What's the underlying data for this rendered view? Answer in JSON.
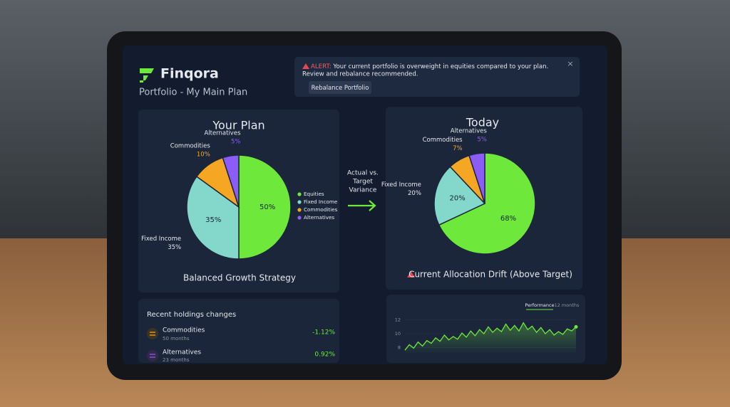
{
  "header": {
    "app_name": "Finqora",
    "subtitle": "Portfolio - My Main Plan"
  },
  "alert": {
    "label": "ALERT:",
    "message": [
      "Your current portfolio is overweight in equities compared to your plan.",
      "Review and rebalance recommended."
    ],
    "button": "Rebalance Portfolio"
  },
  "plan_chart": {
    "type": "pie",
    "title": "Your Plan",
    "caption": "Balanced Growth Strategy",
    "categories": [
      "Equities",
      "Fixed Income",
      "Commodities",
      "Alternatives"
    ],
    "values": [
      50,
      35,
      10,
      5
    ],
    "value_labels": [
      "50%",
      "35%",
      "10%",
      "5%"
    ],
    "colors": [
      "#6ee83a",
      "#84d8cb",
      "#f5a623",
      "#8b5cf6"
    ],
    "legend": true
  },
  "variance_label": [
    "Actual vs.",
    "Target",
    "Variance"
  ],
  "today_chart": {
    "type": "pie",
    "title": "Today",
    "caption": "Current Allocation Drift (Above Target)",
    "categories": [
      "Equities",
      "Fixed Income",
      "Commodities",
      "Alternatives"
    ],
    "values": [
      68,
      20,
      7,
      5
    ],
    "value_labels": [
      "68%",
      "20%",
      "7%",
      "5%"
    ],
    "colors": [
      "#6ee83a",
      "#84d8cb",
      "#f5a623",
      "#8b5cf6"
    ],
    "legend": false
  },
  "holdings": {
    "title": "Recent holdings changes",
    "rows": [
      {
        "name": "Commodities",
        "period": "50 months",
        "change": "-1.12%"
      },
      {
        "name": "Alternatives",
        "period": "23 months",
        "change": "0.92%"
      }
    ]
  },
  "performance": {
    "type": "line",
    "tabs": [
      "Performance",
      "12 months"
    ],
    "values": [
      7.6,
      8.4,
      7.9,
      8.8,
      8.2,
      9.0,
      8.6,
      9.4,
      8.9,
      9.8,
      9.1,
      9.6,
      9.2,
      10.1,
      9.5,
      10.4,
      9.7,
      10.6,
      10.0,
      11.0,
      10.2,
      10.8,
      10.3,
      11.4,
      10.5,
      11.2,
      10.4,
      11.6,
      10.6,
      11.1,
      10.2,
      10.9,
      10.0,
      10.6,
      9.8,
      10.3,
      9.9,
      10.7,
      10.4,
      11.0
    ],
    "ylim": [
      7,
      13
    ],
    "yticks": [
      8,
      10,
      12
    ],
    "color": "#6ee83a"
  }
}
